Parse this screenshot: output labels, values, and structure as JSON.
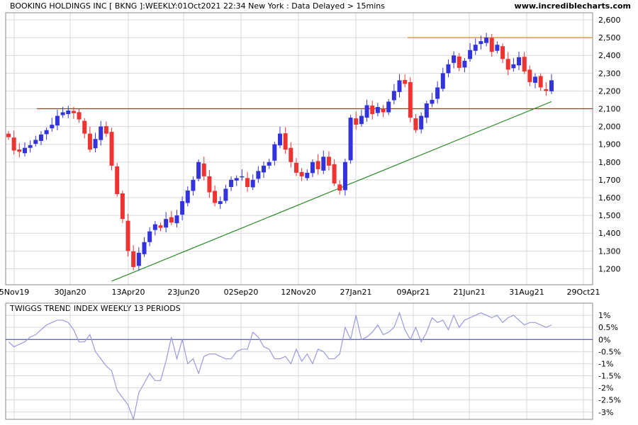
{
  "header": {
    "title": "BOOKING HOLDINGS INC [ BKNG ]:WEEKLY:01Oct2021 22:34 New York : Data Delayed > 15mins",
    "site": "www.incrediblecharts.com"
  },
  "indicator": {
    "title": "TWIGGS TREND INDEX WEEKLY 13 PERIODS"
  },
  "colors": {
    "up": "#3333dd",
    "down": "#ee3333",
    "grid": "#d8d8d8",
    "resistance": "#e08a2a",
    "support": "#cc2222",
    "trendline": "#2a8a2a",
    "indicator_line": "#9999dd",
    "zero_line": "#333399"
  },
  "chart_data": [
    {
      "type": "candlestick",
      "title": "BOOKING HOLDINGS INC [ BKNG ]:WEEKLY:01Oct2021 22:34 New York : Data Delayed > 15mins",
      "x_tick_labels": [
        "5Nov19",
        "30Jan20",
        "13Apr20",
        "23Jun20",
        "02Sep20",
        "12Nov20",
        "27Jan21",
        "09Apr21",
        "21Jun21",
        "31Aug21",
        "29Oct21"
      ],
      "y_ticks": [
        1200,
        1300,
        1400,
        1500,
        1600,
        1700,
        1800,
        1900,
        2000,
        2100,
        2200,
        2300,
        2400,
        2500,
        2600
      ],
      "y_tick_labels": [
        "1,200",
        "1,300",
        "1,400",
        "1,500",
        "1,600",
        "1,700",
        "1,800",
        "1,900",
        "2,000",
        "2,100",
        "2,200",
        "2,300",
        "2,400",
        "2,500",
        "2,600"
      ],
      "ylim": [
        1110,
        2640
      ],
      "grid": true,
      "weeks": 101,
      "close": [
        1940,
        1865,
        1858,
        1880,
        1895,
        1925,
        1955,
        1980,
        2010,
        2060,
        2080,
        2090,
        2075,
        2040,
        1960,
        1870,
        1930,
        2000,
        1960,
        1780,
        1620,
        1480,
        1300,
        1210,
        1290,
        1350,
        1410,
        1450,
        1430,
        1480,
        1460,
        1500,
        1580,
        1640,
        1700,
        1800,
        1720,
        1630,
        1570,
        1580,
        1650,
        1700,
        1710,
        1720,
        1660,
        1700,
        1750,
        1780,
        1800,
        1900,
        1960,
        1870,
        1800,
        1740,
        1720,
        1740,
        1800,
        1760,
        1830,
        1780,
        1680,
        1640,
        1800,
        2050,
        2010,
        2060,
        2120,
        2070,
        2110,
        2080,
        2140,
        2200,
        2260,
        2240,
        2050,
        1980,
        2060,
        2130,
        2150,
        2220,
        2300,
        2350,
        2400,
        2330,
        2370,
        2430,
        2460,
        2480,
        2500,
        2420,
        2460,
        2380,
        2320,
        2350,
        2390,
        2310,
        2250,
        2280,
        2220,
        2200,
        2260
      ],
      "range": "approx 1,150 to 2,540; weekly candlesticks, blue = up week, red = down week"
    },
    {
      "type": "line",
      "title": "TWIGGS TREND INDEX WEEKLY 13 PERIODS",
      "y_ticks": [
        1,
        0.5,
        0,
        -0.5,
        -1,
        -1.5,
        -2,
        -2.5,
        -3
      ],
      "y_tick_labels": [
        "1%",
        "0.5%",
        "0%",
        "-0.5%",
        "-1%",
        "-1.5%",
        "-2%",
        "-2.5%",
        "-3%"
      ],
      "ylim": [
        -3.3,
        1.5
      ],
      "values": [
        -0.1,
        -0.3,
        -0.2,
        -0.1,
        0.1,
        0.2,
        0.4,
        0.6,
        0.7,
        0.8,
        0.8,
        0.7,
        0.4,
        -0.1,
        -0.1,
        0.2,
        -0.5,
        -0.8,
        -1.1,
        -1.3,
        -2.1,
        -2.4,
        -2.7,
        -3.3,
        -2.2,
        -1.8,
        -1.4,
        -1.7,
        -1.7,
        -0.9,
        0.1,
        -0.8,
        0,
        -1.0,
        -0.8,
        -1.4,
        -0.7,
        -0.6,
        -0.6,
        -0.7,
        -0.8,
        -0.8,
        -0.5,
        -0.4,
        -0.4,
        0.3,
        0.1,
        -0.3,
        -0.4,
        -0.8,
        -0.8,
        -0.7,
        -1.0,
        -0.4,
        -0.9,
        -0.6,
        -1.0,
        -0.4,
        -0.5,
        -0.8,
        -0.8,
        -0.6,
        0.5,
        0.0,
        1.0,
        0.0,
        0.1,
        0.3,
        0.6,
        0.2,
        0.3,
        0.5,
        1.1,
        0.4,
        0.0,
        0.5,
        -0.1,
        0.3,
        0.9,
        0.7,
        0.8,
        0.4,
        1.0,
        0.5,
        0.8,
        0.9,
        1.0,
        1.1,
        1.0,
        0.9,
        1.0,
        0.7,
        0.9,
        1.0,
        0.8,
        0.6,
        0.7,
        0.7,
        0.6,
        0.5,
        0.6
      ]
    }
  ]
}
